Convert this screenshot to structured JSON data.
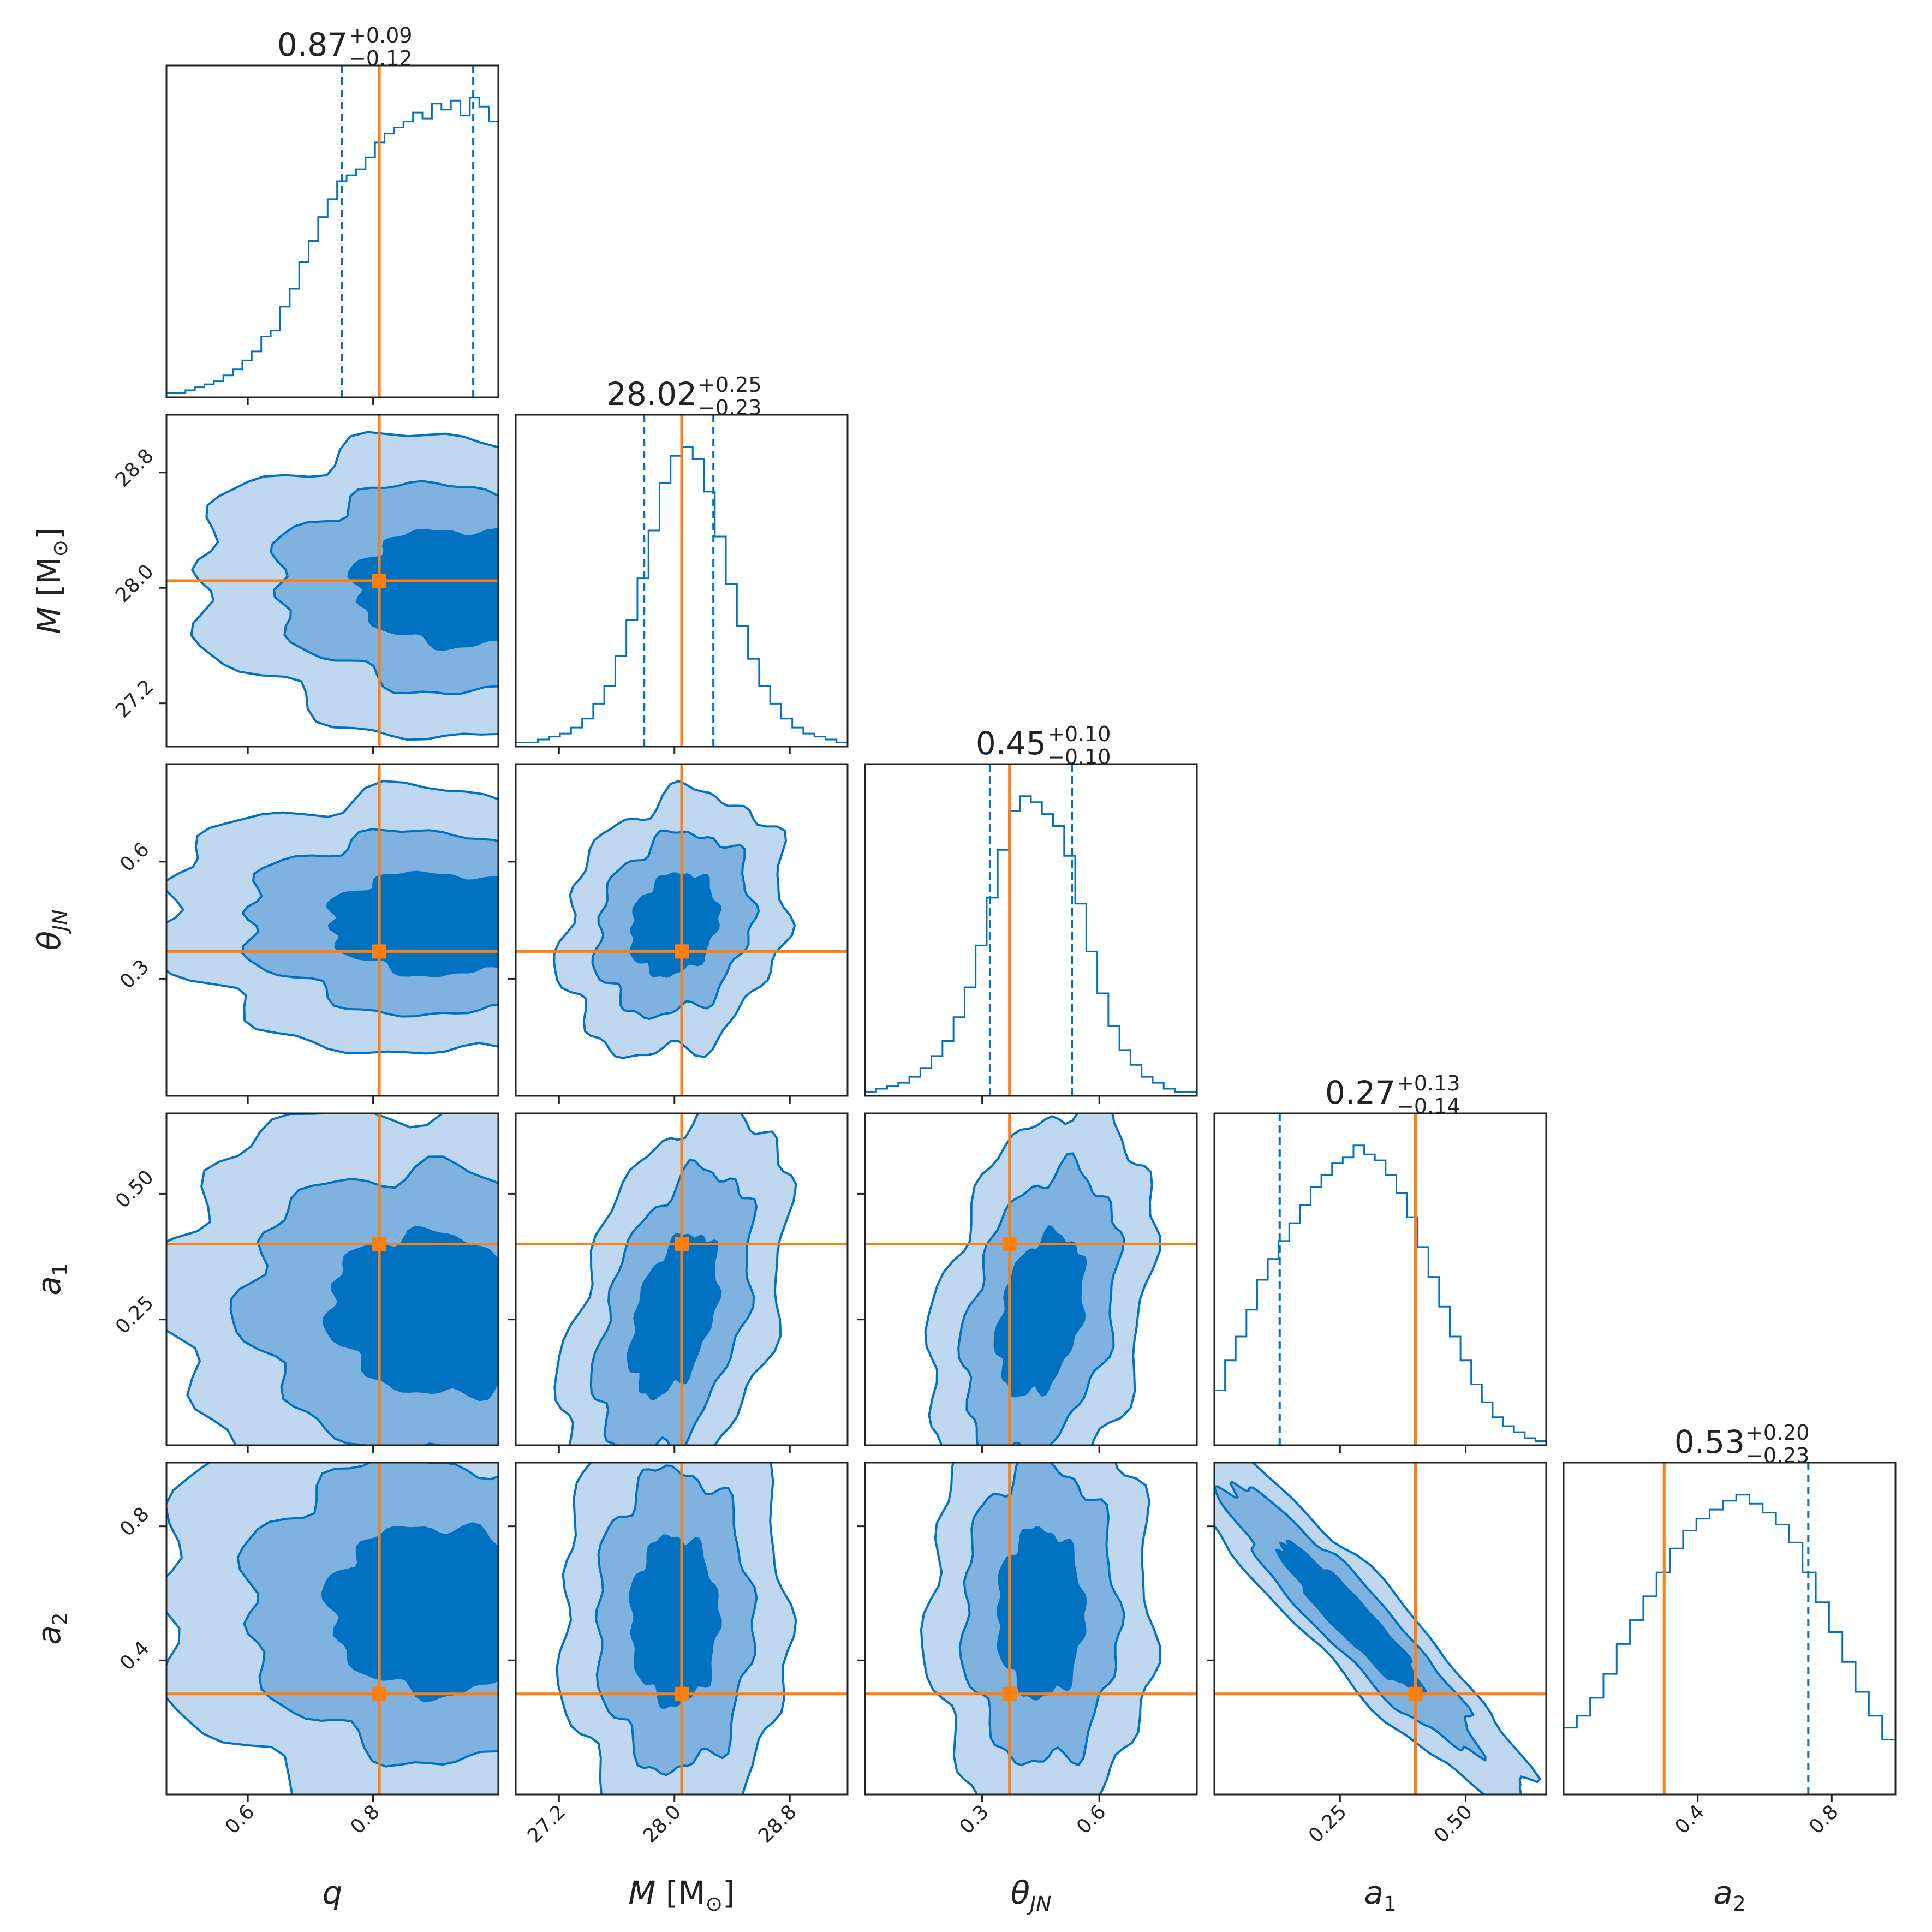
{
  "chart_data": {
    "type": "corner",
    "colors": {
      "posterior": "#0072c1",
      "truth": "#ff7f0e",
      "frame": "#222222",
      "fill1": "#0072c1",
      "fill2": "#7fb2de",
      "fill3": "#bfd8ef"
    },
    "parameters": [
      {
        "key": "q",
        "axis_label": "q",
        "range": [
          0.47,
          1.0
        ],
        "truth": 0.81,
        "median": "0.87",
        "plus": "+0.09",
        "minus": "−0.12",
        "lo": 0.75,
        "hi": 0.96,
        "ticks": [
          0.6,
          0.8
        ],
        "tick_labels": [
          "0.6",
          "0.8"
        ]
      },
      {
        "key": "M",
        "axis_label": "M [M⊙]",
        "range": [
          26.9,
          29.2
        ],
        "truth": 28.05,
        "median": "28.02",
        "plus": "+0.25",
        "minus": "−0.23",
        "lo": 27.79,
        "hi": 28.27,
        "ticks": [
          27.2,
          28.0,
          28.8
        ],
        "tick_labels": [
          "27.2",
          "28.0",
          "28.8"
        ]
      },
      {
        "key": "thetaJN",
        "axis_label": "θJN",
        "range": [
          0.0,
          0.85
        ],
        "truth": 0.37,
        "median": "0.45",
        "plus": "+0.10",
        "minus": "−0.10",
        "lo": 0.32,
        "hi": 0.53,
        "ticks": [
          0.3,
          0.6
        ],
        "tick_labels": [
          "0.3",
          "0.6"
        ]
      },
      {
        "key": "a1",
        "axis_label": "a1",
        "range": [
          0.0,
          0.66
        ],
        "truth": 0.4,
        "median": "0.27",
        "plus": "+0.13",
        "minus": "−0.14",
        "lo": 0.13,
        "hi": 0.4,
        "ticks": [
          0.25,
          0.5
        ],
        "tick_labels": [
          "0.25",
          "0.50"
        ]
      },
      {
        "key": "a2",
        "axis_label": "a2",
        "range": [
          0.0,
          0.99
        ],
        "truth": 0.3,
        "median": "0.53",
        "plus": "+0.20",
        "minus": "−0.23",
        "lo": 0.3,
        "hi": 0.73,
        "ticks": [
          0.4,
          0.8
        ],
        "tick_labels": [
          "0.4",
          "0.8"
        ]
      }
    ],
    "marginal_histograms": [
      [
        0.01,
        0.01,
        0.02,
        0.03,
        0.04,
        0.05,
        0.07,
        0.09,
        0.12,
        0.15,
        0.2,
        0.22,
        0.3,
        0.36,
        0.45,
        0.52,
        0.6,
        0.66,
        0.72,
        0.74,
        0.76,
        0.8,
        0.85,
        0.88,
        0.9,
        0.92,
        0.95,
        0.93,
        0.98,
        0.96,
        0.99,
        0.94,
        1.0,
        0.97,
        0.92
      ],
      [
        0.01,
        0.01,
        0.02,
        0.03,
        0.04,
        0.06,
        0.09,
        0.14,
        0.2,
        0.3,
        0.42,
        0.56,
        0.72,
        0.88,
        0.97,
        1.0,
        0.96,
        0.85,
        0.7,
        0.54,
        0.4,
        0.29,
        0.2,
        0.14,
        0.09,
        0.06,
        0.04,
        0.03,
        0.02,
        0.01
      ],
      [
        0.01,
        0.02,
        0.03,
        0.04,
        0.06,
        0.09,
        0.13,
        0.18,
        0.26,
        0.36,
        0.5,
        0.66,
        0.82,
        0.95,
        1.0,
        0.98,
        0.94,
        0.9,
        0.8,
        0.64,
        0.48,
        0.34,
        0.23,
        0.15,
        0.1,
        0.06,
        0.04,
        0.02,
        0.01,
        0.01
      ],
      [
        0.18,
        0.28,
        0.36,
        0.45,
        0.55,
        0.62,
        0.68,
        0.74,
        0.8,
        0.86,
        0.9,
        0.94,
        0.96,
        1.0,
        0.97,
        0.95,
        0.9,
        0.84,
        0.76,
        0.66,
        0.56,
        0.46,
        0.36,
        0.28,
        0.2,
        0.14,
        0.09,
        0.06,
        0.04,
        0.02,
        0.01
      ],
      [
        0.22,
        0.26,
        0.32,
        0.4,
        0.5,
        0.58,
        0.66,
        0.74,
        0.82,
        0.88,
        0.92,
        0.95,
        0.98,
        1.0,
        0.97,
        0.94,
        0.9,
        0.84,
        0.74,
        0.64,
        0.54,
        0.44,
        0.34,
        0.26,
        0.18
      ]
    ],
    "pair_posteriors": [
      {
        "row": 1,
        "col": 0,
        "cx": 0.93,
        "cy": 28.0,
        "sx": 0.16,
        "sy": 0.4,
        "rho": -0.05
      },
      {
        "row": 2,
        "col": 0,
        "cx": 0.9,
        "cy": 0.44,
        "sx": 0.17,
        "sy": 0.13,
        "rho": -0.05
      },
      {
        "row": 2,
        "col": 1,
        "cx": 28.0,
        "cy": 0.44,
        "sx": 0.3,
        "sy": 0.13,
        "rho": 0.2
      },
      {
        "row": 3,
        "col": 0,
        "cx": 0.9,
        "cy": 0.26,
        "sx": 0.17,
        "sy": 0.16,
        "rho": -0.1
      },
      {
        "row": 3,
        "col": 1,
        "cx": 28.0,
        "cy": 0.26,
        "sx": 0.3,
        "sy": 0.16,
        "rho": 0.45
      },
      {
        "row": 3,
        "col": 2,
        "cx": 0.45,
        "cy": 0.26,
        "sx": 0.11,
        "sy": 0.16,
        "rho": 0.35
      },
      {
        "row": 4,
        "col": 0,
        "cx": 0.9,
        "cy": 0.55,
        "sx": 0.17,
        "sy": 0.25,
        "rho": -0.05
      },
      {
        "row": 4,
        "col": 1,
        "cx": 28.0,
        "cy": 0.52,
        "sx": 0.3,
        "sy": 0.25,
        "rho": 0.0
      },
      {
        "row": 4,
        "col": 2,
        "cx": 0.45,
        "cy": 0.54,
        "sx": 0.11,
        "sy": 0.25,
        "rho": 0.0
      },
      {
        "row": 4,
        "col": 3,
        "cx": 0.27,
        "cy": 0.53,
        "sx": 0.14,
        "sy": 0.22,
        "rho": -0.94
      }
    ],
    "contour_levels": [
      1.0,
      1.8,
      2.6
    ]
  }
}
